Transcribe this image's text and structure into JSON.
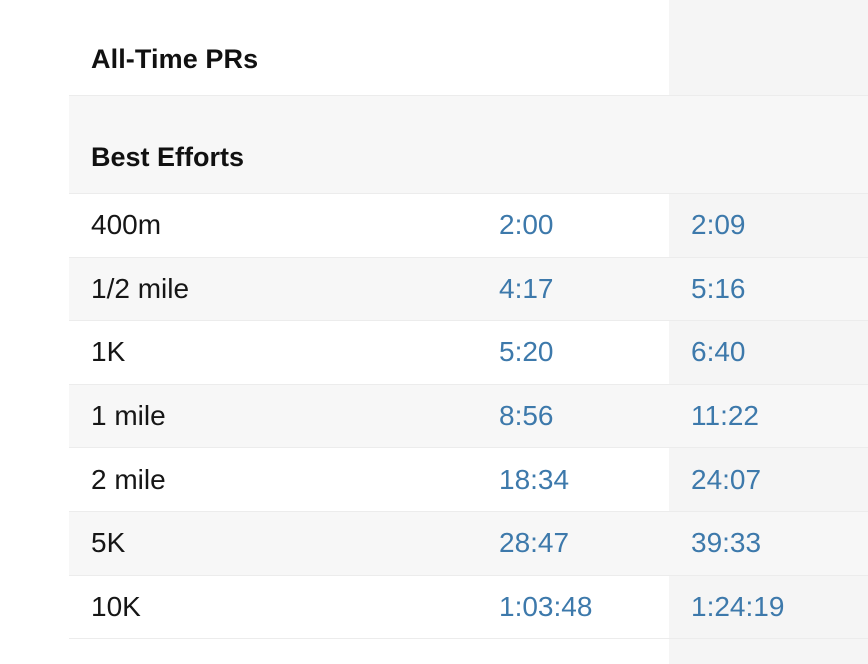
{
  "header": {
    "title": "All-Time PRs"
  },
  "section": {
    "title": "Best Efforts"
  },
  "best_efforts": [
    {
      "distance": "400m",
      "time_primary": "2:00",
      "time_secondary": "2:09"
    },
    {
      "distance": "1/2 mile",
      "time_primary": "4:17",
      "time_secondary": "5:16"
    },
    {
      "distance": "1K",
      "time_primary": "5:20",
      "time_secondary": "6:40"
    },
    {
      "distance": "1 mile",
      "time_primary": "8:56",
      "time_secondary": "11:22"
    },
    {
      "distance": "2 mile",
      "time_primary": "18:34",
      "time_secondary": "24:07"
    },
    {
      "distance": "5K",
      "time_primary": "28:47",
      "time_secondary": "39:33"
    },
    {
      "distance": "10K",
      "time_primary": "1:03:48",
      "time_secondary": "1:24:19"
    }
  ],
  "colors": {
    "link": "#3d79ab",
    "row_alt": "#f7f7f7",
    "text": "#161616"
  }
}
